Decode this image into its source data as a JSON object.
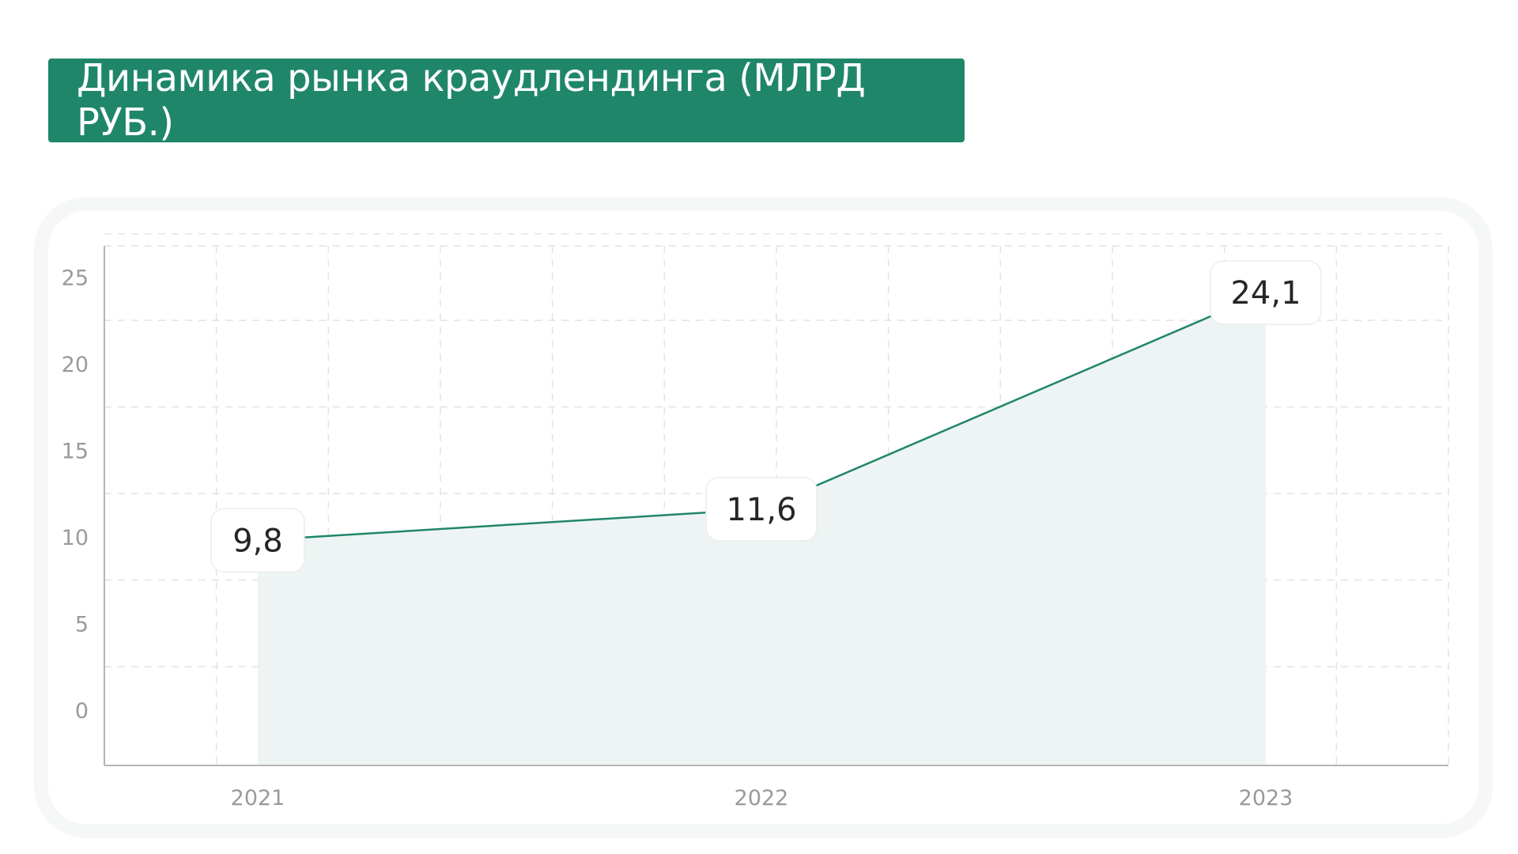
{
  "header": {
    "title": "Динамика рынка краудлендинга (МЛРД РУБ.)"
  },
  "colors": {
    "accent": "#20866a",
    "line": "#20866a",
    "area_fill": "#eef4f3",
    "grid": "#e3e3e3",
    "axis": "#b5b5b5",
    "tick_text": "#9a9a9a"
  },
  "chart_data": {
    "type": "area",
    "categories": [
      "2021",
      "2022",
      "2023"
    ],
    "series": [
      {
        "values": [
          9.8,
          11.6,
          24.1
        ],
        "labels": [
          "9,8",
          "11,6",
          "24,1"
        ]
      }
    ],
    "yticks": [
      0,
      5,
      10,
      15,
      20,
      25
    ],
    "ytick_labels": [
      "0",
      "5",
      "10",
      "15",
      "20",
      "25"
    ],
    "ylim": [
      -3.2,
      26.8
    ],
    "xlabel": "",
    "ylabel": "",
    "grid": true,
    "legend": "none"
  }
}
